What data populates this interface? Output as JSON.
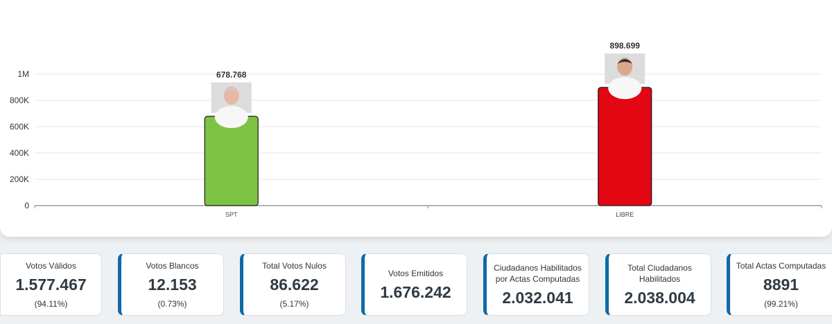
{
  "chart_data": {
    "type": "bar",
    "categories": [
      "SPT",
      "LIBRE"
    ],
    "values": [
      678768,
      898699
    ],
    "data_labels": [
      "678.768",
      "898.699"
    ],
    "bar_colors": [
      "#7dc242",
      "#e30613"
    ],
    "candidate_photos": [
      "candidate-photo-spt",
      "candidate-photo-libre"
    ],
    "ylim": [
      0,
      1000000
    ],
    "yticks": [
      0,
      200000,
      400000,
      600000,
      800000,
      1000000
    ],
    "ytick_labels": [
      "0",
      "200K",
      "400K",
      "600K",
      "800K",
      "1M"
    ],
    "grid": true,
    "title": "",
    "xlabel": "",
    "ylabel": ""
  },
  "stats": [
    {
      "title": "Votos Válidos",
      "value": "1.577.467",
      "pct": "(94.11%)"
    },
    {
      "title": "Votos Blancos",
      "value": "12.153",
      "pct": "(0.73%)"
    },
    {
      "title": "Total Votos Nulos",
      "value": "86.622",
      "pct": "(5.17%)"
    },
    {
      "title": "Votos Emitidos",
      "value": "1.676.242",
      "pct": ""
    },
    {
      "title": "Ciudadanos Habilitados por Actas Computadas",
      "value": "2.032.041",
      "pct": ""
    },
    {
      "title": "Total Ciudadanos Habilitados",
      "value": "2.038.004",
      "pct": ""
    },
    {
      "title": "Total Actas Computadas",
      "value": "8891",
      "pct": "(99.21%)"
    }
  ],
  "colors": {
    "accent": "#0e6aa6",
    "value_text": "#2f3a45"
  }
}
